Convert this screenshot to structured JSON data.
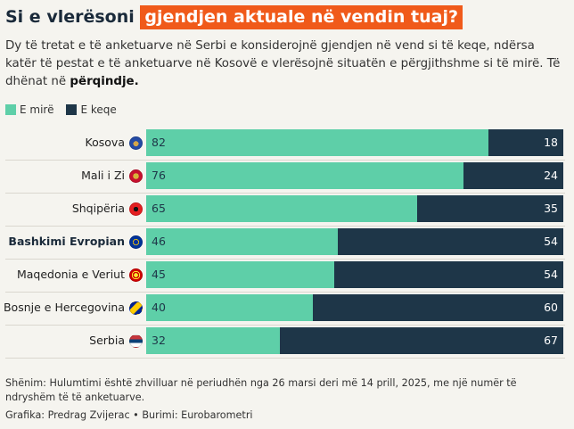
{
  "title": {
    "prefix": "Si e vlerësoni",
    "highlight": "gjendjen aktuale në vendin tuaj?"
  },
  "subtitle": {
    "text": "Dy të tretat e të anketuarve në Serbi e konsiderojnë gjendjen në vend si të keqe, ndërsa katër të pestat e të anketuarve në Kosovë e vlerësojnë situatën e përgjithshme si të mirë. Të dhënat në ",
    "bold": "përqindje."
  },
  "legend": [
    {
      "label": "E mirë",
      "color": "#5ecfa8"
    },
    {
      "label": "E keqe",
      "color": "#1e3648"
    }
  ],
  "chart_data": {
    "type": "bar",
    "orientation": "horizontal",
    "stacked": true,
    "categories": [
      "Kosova",
      "Mali i Zi",
      "Shqipëria",
      "Bashkimi Evropian",
      "Maqedonia e Veriut",
      "Bosnje e Hercegovina",
      "Serbia"
    ],
    "series": [
      {
        "name": "E mirë",
        "color": "#5ecfa8",
        "values": [
          82,
          76,
          65,
          46,
          45,
          40,
          32
        ]
      },
      {
        "name": "E keqe",
        "color": "#1e3648",
        "values": [
          18,
          24,
          35,
          54,
          54,
          60,
          67
        ]
      }
    ],
    "bold_category": "Bashkimi Evropian",
    "flag_icons": [
      "kosovo-flag-icon",
      "montenegro-flag-icon",
      "albania-flag-icon",
      "eu-flag-icon",
      "north-macedonia-flag-icon",
      "bosnia-flag-icon",
      "serbia-flag-icon"
    ]
  },
  "note": "Shënim: Hulumtimi është zhvilluar në periudhën nga 26 marsi deri më 14 prill, 2025, me një numër të ndryshëm të të anketuarve.",
  "credit": "Grafika: Predrag Zvijerac • Burimi: Eurobarometri"
}
